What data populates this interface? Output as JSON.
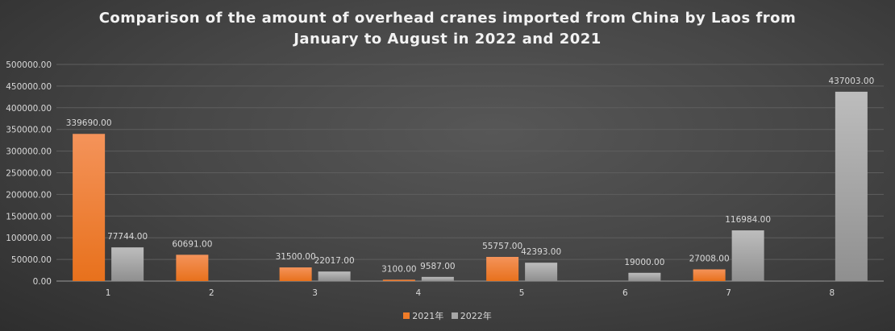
{
  "chart_data": {
    "type": "bar",
    "title_lines": [
      "Comparison of the amount of overhead cranes imported from China by Laos from",
      "January to August in 2022 and 2021"
    ],
    "categories": [
      "1",
      "2",
      "3",
      "4",
      "5",
      "6",
      "7",
      "8"
    ],
    "series": [
      {
        "name": "2021年",
        "color": "#f07c28",
        "values": [
          339690.0,
          60691.0,
          31500.0,
          3100.0,
          55757.0,
          null,
          27008.0,
          null
        ]
      },
      {
        "name": "2022年",
        "color": "#a6a6a6",
        "values": [
          77744.0,
          null,
          22017.0,
          9587.0,
          42393.0,
          19000.0,
          116984.0,
          437003.0
        ]
      }
    ],
    "ylim": [
      0,
      500000
    ],
    "yticks": [
      "0.00",
      "50000.00",
      "100000.00",
      "150000.00",
      "200000.00",
      "250000.00",
      "300000.00",
      "350000.00",
      "400000.00",
      "450000.00",
      "500000.00"
    ],
    "grid": true,
    "legend": "bottom",
    "xlabel": "",
    "ylabel": ""
  }
}
